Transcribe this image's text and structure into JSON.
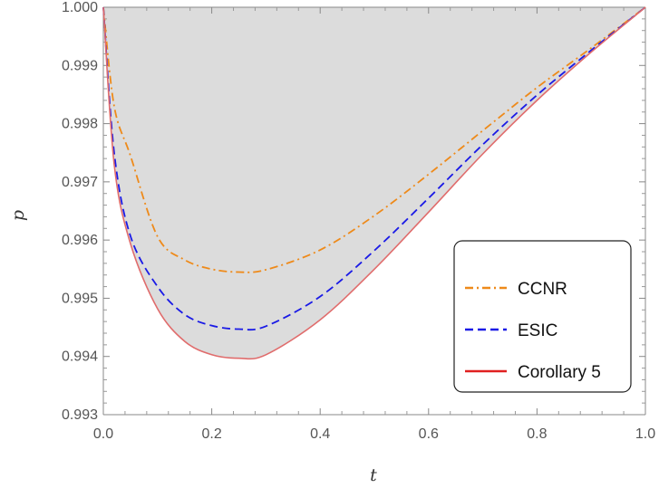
{
  "chart_data": {
    "type": "line",
    "xlabel": "t",
    "ylabel": "p",
    "xlim": [
      0.0,
      1.0
    ],
    "ylim": [
      0.993,
      1.0
    ],
    "xticks": [
      "0.0",
      "0.2",
      "0.4",
      "0.6",
      "0.8",
      "1.0"
    ],
    "yticks": [
      "0.993",
      "0.994",
      "0.995",
      "0.996",
      "0.997",
      "0.998",
      "0.999",
      "1.000"
    ],
    "xtick_values": [
      0.0,
      0.2,
      0.4,
      0.6,
      0.8,
      1.0
    ],
    "ytick_values": [
      0.993,
      0.994,
      0.995,
      0.996,
      0.997,
      0.998,
      0.999,
      1.0
    ],
    "shaded_region": "area between Corollary 5 curve and p = 1",
    "shade_color": "#dcdcdc",
    "legend_placement": "bottom-right",
    "series": [
      {
        "name": "CCNR",
        "color": "#ee8a1a",
        "style": "dash-dot",
        "x": [
          0.0,
          0.02,
          0.05,
          0.1,
          0.15,
          0.2,
          0.25,
          0.3,
          0.4,
          0.5,
          0.6,
          0.7,
          0.8,
          0.9,
          1.0
        ],
        "y": [
          1.0,
          0.9983,
          0.99745,
          0.99606,
          0.99566,
          0.9955,
          0.99545,
          0.99549,
          0.99583,
          0.99642,
          0.99713,
          0.99788,
          0.99862,
          0.9993,
          1.0
        ]
      },
      {
        "name": "ESIC",
        "color": "#1a1ae6",
        "style": "dashed",
        "x": [
          0.0,
          0.02,
          0.05,
          0.1,
          0.15,
          0.2,
          0.25,
          0.3,
          0.4,
          0.5,
          0.6,
          0.7,
          0.8,
          0.9,
          1.0
        ],
        "y": [
          1.0,
          0.9975,
          0.99607,
          0.9952,
          0.99472,
          0.99453,
          0.99447,
          0.99452,
          0.99503,
          0.99582,
          0.99672,
          0.99764,
          0.99849,
          0.99926,
          1.0
        ]
      },
      {
        "name": "Corollary 5",
        "color": "#e06c6c",
        "legend_color": "#e02020",
        "style": "solid",
        "x": [
          0.0,
          0.02,
          0.05,
          0.1,
          0.15,
          0.2,
          0.25,
          0.3,
          0.4,
          0.5,
          0.6,
          0.7,
          0.8,
          0.9,
          1.0
        ],
        "y": [
          1.0,
          0.9973,
          0.99594,
          0.99482,
          0.99426,
          0.99403,
          0.99397,
          0.99403,
          0.99463,
          0.9955,
          0.99648,
          0.99748,
          0.9984,
          0.99923,
          1.0
        ]
      }
    ]
  }
}
